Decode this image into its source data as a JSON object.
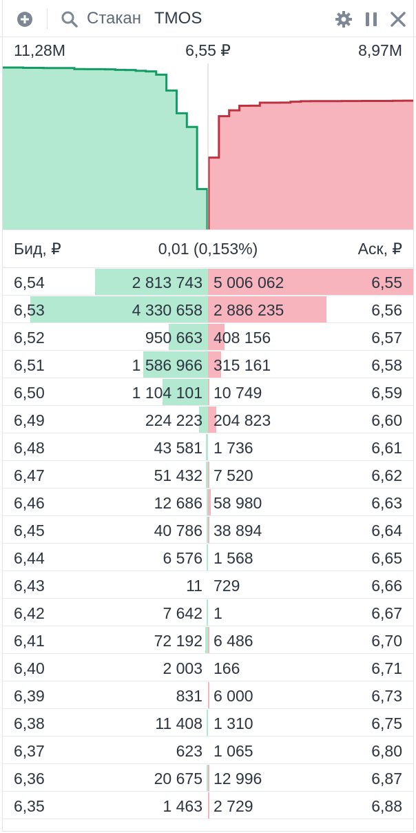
{
  "header": {
    "title": "Стакан",
    "ticker": "TMOS",
    "icons": [
      "add-icon",
      "search-icon",
      "gear-icon",
      "pause-icon",
      "close-icon"
    ]
  },
  "summary": {
    "bid_total": "11,28M",
    "last_price": "6,55 ₽",
    "ask_total": "8,97M"
  },
  "columns": {
    "bid": "Бид, ₽",
    "spread": "0,01 (0,153%)",
    "ask": "Аск, ₽"
  },
  "colors": {
    "bid_fill": "#b3e9d1",
    "bid_line": "#139c63",
    "ask_fill": "#f7b4bc",
    "ask_line": "#c0313f"
  },
  "rows": [
    {
      "bid_price": "6,54",
      "bid_vol": "2 813 743",
      "ask_vol": "5 006 062",
      "ask_price": "6,55",
      "bid_frac": 0.551,
      "ask_frac": 1.0
    },
    {
      "bid_price": "6,53",
      "bid_vol": "4 330 658",
      "ask_vol": "2 886 235",
      "ask_price": "6,56",
      "bid_frac": 0.867,
      "ask_frac": 0.577
    },
    {
      "bid_price": "6,52",
      "bid_vol": "950 663",
      "ask_vol": "408 156",
      "ask_price": "6,57",
      "bid_frac": 0.19,
      "ask_frac": 0.082
    },
    {
      "bid_price": "6,51",
      "bid_vol": "1 586 966",
      "ask_vol": "315 161",
      "ask_price": "6,58",
      "bid_frac": 0.317,
      "ask_frac": 0.063
    },
    {
      "bid_price": "6,50",
      "bid_vol": "1 104 101",
      "ask_vol": "10 749",
      "ask_price": "6,59",
      "bid_frac": 0.221,
      "ask_frac": 0.004
    },
    {
      "bid_price": "6,49",
      "bid_vol": "224 223",
      "ask_vol": "204 823",
      "ask_price": "6,60",
      "bid_frac": 0.045,
      "ask_frac": 0.041
    },
    {
      "bid_price": "6,48",
      "bid_vol": "43 581",
      "ask_vol": "1 736",
      "ask_price": "6,61",
      "bid_frac": 0.009,
      "ask_frac": 0.0
    },
    {
      "bid_price": "6,47",
      "bid_vol": "51 432",
      "ask_vol": "7 520",
      "ask_price": "6,62",
      "bid_frac": 0.01,
      "ask_frac": 0.002
    },
    {
      "bid_price": "6,46",
      "bid_vol": "12 686",
      "ask_vol": "58 980",
      "ask_price": "6,63",
      "bid_frac": 0.003,
      "ask_frac": 0.012
    },
    {
      "bid_price": "6,45",
      "bid_vol": "40 786",
      "ask_vol": "38 894",
      "ask_price": "6,64",
      "bid_frac": 0.008,
      "ask_frac": 0.008
    },
    {
      "bid_price": "6,44",
      "bid_vol": "6 576",
      "ask_vol": "1 568",
      "ask_price": "6,65",
      "bid_frac": 0.001,
      "ask_frac": 0.0
    },
    {
      "bid_price": "6,43",
      "bid_vol": "11",
      "ask_vol": "729",
      "ask_price": "6,66",
      "bid_frac": 0.0,
      "ask_frac": 0.0
    },
    {
      "bid_price": "6,42",
      "bid_vol": "7 642",
      "ask_vol": "1",
      "ask_price": "6,67",
      "bid_frac": 0.002,
      "ask_frac": 0.0
    },
    {
      "bid_price": "6,41",
      "bid_vol": "72 192",
      "ask_vol": "6 486",
      "ask_price": "6,70",
      "bid_frac": 0.014,
      "ask_frac": 0.001
    },
    {
      "bid_price": "6,40",
      "bid_vol": "2 003",
      "ask_vol": "166",
      "ask_price": "6,71",
      "bid_frac": 0.0,
      "ask_frac": 0.0
    },
    {
      "bid_price": "6,39",
      "bid_vol": "831",
      "ask_vol": "6 000",
      "ask_price": "6,73",
      "bid_frac": 0.0,
      "ask_frac": 0.001
    },
    {
      "bid_price": "6,38",
      "bid_vol": "11 408",
      "ask_vol": "1 310",
      "ask_price": "6,75",
      "bid_frac": 0.002,
      "ask_frac": 0.0
    },
    {
      "bid_price": "6,37",
      "bid_vol": "623",
      "ask_vol": "1 065",
      "ask_price": "6,80",
      "bid_frac": 0.0,
      "ask_frac": 0.0
    },
    {
      "bid_price": "6,36",
      "bid_vol": "20 675",
      "ask_vol": "12 996",
      "ask_price": "6,87",
      "bid_frac": 0.004,
      "ask_frac": 0.003
    },
    {
      "bid_price": "6,35",
      "bid_vol": "1 463",
      "ask_vol": "2 729",
      "ask_price": "6,88",
      "bid_frac": 0.0,
      "ask_frac": 0.001
    }
  ],
  "chart_data": {
    "type": "area",
    "title": "",
    "xlabel": "",
    "ylabel": "",
    "bid_prices": [
      "6,54",
      "6,53",
      "6,52",
      "6,51",
      "6,50",
      "6,49",
      "6,48",
      "6,47",
      "6,46",
      "6,45",
      "6,44",
      "6,43",
      "6,42",
      "6,41",
      "6,40",
      "6,39",
      "6,38",
      "6,37",
      "6,36",
      "6,35"
    ],
    "bid_cumulative": [
      2813743,
      7144401,
      8095064,
      9682030,
      10786131,
      11010354,
      11053935,
      11105367,
      11118053,
      11158839,
      11165415,
      11165426,
      11173068,
      11245260,
      11247263,
      11248094,
      11259502,
      11260125,
      11280800,
      11282263
    ],
    "ask_prices": [
      "6,55",
      "6,56",
      "6,57",
      "6,58",
      "6,59",
      "6,60",
      "6,61",
      "6,62",
      "6,63",
      "6,64",
      "6,65",
      "6,66",
      "6,67",
      "6,70",
      "6,71",
      "6,73",
      "6,75",
      "6,80",
      "6,87",
      "6,88"
    ],
    "ask_cumulative": [
      5006062,
      7892297,
      8300453,
      8615614,
      8626363,
      8831186,
      8832922,
      8840442,
      8899422,
      8938316,
      8939884,
      8940613,
      8940614,
      8947100,
      8947266,
      8953266,
      8954576,
      8955641,
      8968637,
      8971366
    ]
  }
}
